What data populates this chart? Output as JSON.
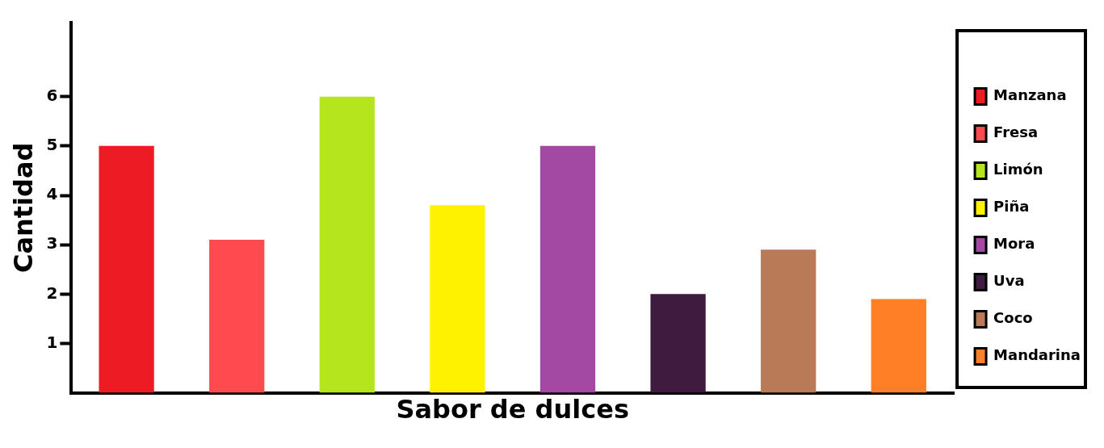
{
  "chart_data": {
    "type": "bar",
    "xlabel": "Sabor de dulces",
    "ylabel": "Cantidad",
    "categories": [
      null,
      null,
      null,
      null,
      null,
      null,
      null,
      null
    ],
    "series": [
      {
        "name": "Manzana",
        "color": "#ed1c24",
        "values": [
          5,
          null,
          null,
          null,
          null,
          null,
          null,
          null
        ]
      },
      {
        "name": "Fresa",
        "color": "#ff4b4f",
        "values": [
          null,
          3.1,
          null,
          null,
          null,
          null,
          null,
          null
        ]
      },
      {
        "name": "Limón",
        "color": "#b5e61d",
        "values": [
          null,
          null,
          6,
          null,
          null,
          null,
          null,
          null
        ]
      },
      {
        "name": "Piña",
        "color": "#fff200",
        "values": [
          null,
          null,
          null,
          3.8,
          null,
          null,
          null,
          null
        ]
      },
      {
        "name": "Mora",
        "color": "#a349a4",
        "values": [
          null,
          null,
          null,
          null,
          5,
          null,
          null,
          null
        ]
      },
      {
        "name": "Uva",
        "color": "#3f1c3f",
        "values": [
          null,
          null,
          null,
          null,
          null,
          2,
          null,
          null
        ]
      },
      {
        "name": "Coco",
        "color": "#b97a57",
        "values": [
          null,
          null,
          null,
          null,
          null,
          null,
          2.9,
          null
        ]
      },
      {
        "name": "Mandarina",
        "color": "#ff7f27",
        "values": [
          null,
          null,
          null,
          null,
          null,
          null,
          null,
          1.9
        ]
      }
    ],
    "ylim": [
      0,
      7.5
    ],
    "yticks": [
      1,
      2,
      3,
      4,
      5,
      6
    ],
    "grid": false,
    "legend": "right",
    "tick_labels": "y"
  }
}
